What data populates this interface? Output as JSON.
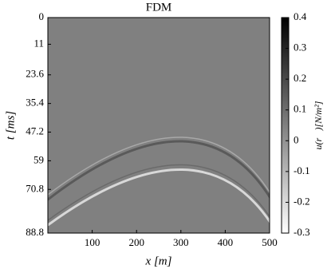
{
  "chart_data": {
    "type": "heatmap",
    "title": "FDM",
    "x_label": "x [m]",
    "y_label": "t [ms]",
    "xlim": [
      0,
      500
    ],
    "xticks": [
      100,
      200,
      300,
      400,
      500
    ],
    "ylim": [
      0,
      88.8
    ],
    "yticks": [
      0,
      11,
      23.6,
      35.4,
      47.2,
      59,
      70.8,
      88.8
    ],
    "colorbar": {
      "label": "u(r⃗)[N/m²]",
      "lim": [
        -0.3,
        0.4
      ],
      "ticks": [
        0.4,
        0.3,
        0.2,
        0.1,
        0,
        -0.1,
        -0.2,
        -0.3
      ],
      "colors": [
        "#ffffff",
        "#000000"
      ]
    }
  }
}
